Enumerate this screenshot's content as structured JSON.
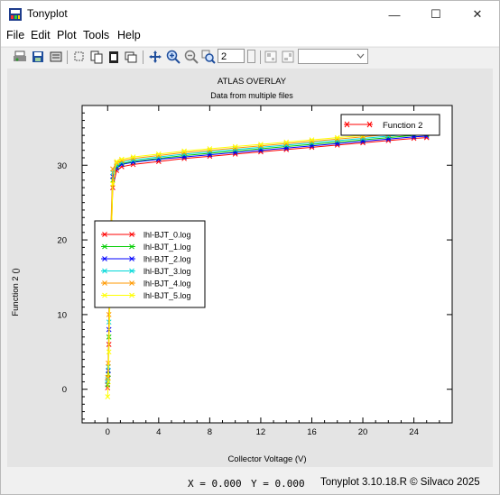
{
  "window": {
    "title": "Tonyplot",
    "minimize": "—",
    "maximize": "☐",
    "close": "✕"
  },
  "menu": [
    "File",
    "Edit",
    "Plot",
    "Tools",
    "Help"
  ],
  "toolbar": {
    "zoom_value": "2",
    "icons": [
      "print-icon",
      "save-icon",
      "print-preview-icon",
      "select-icon",
      "copy-icon",
      "clipboard-icon",
      "window-icon",
      "pan-icon",
      "zoom-in-icon",
      "zoom-out-icon",
      "zoom-box-icon",
      "layout-icon",
      "layout-alt-icon"
    ]
  },
  "status": {
    "x": "X = 0.000",
    "y": "Y = 0.000",
    "credit": "Tonyplot 3.10.18.R © Silvaco 2025"
  },
  "chart_data": {
    "type": "line",
    "title": "ATLAS OVERLAY",
    "subtitle": "Data from multiple files",
    "xlabel": "Collector Voltage (V)",
    "ylabel": "Function 2 ()",
    "xlim": [
      -2,
      27
    ],
    "ylim": [
      -4.5,
      38
    ],
    "xticks": [
      0,
      4,
      8,
      12,
      16,
      20,
      24
    ],
    "yticks": [
      0,
      10,
      20,
      30
    ],
    "grid": false,
    "legend_placement": "left",
    "legend_top_right": "Function 2",
    "series": [
      {
        "name": "lhl-BJT_0.log",
        "color": "#ff0000",
        "x": [
          0,
          0.05,
          0.1,
          0.2,
          0.4,
          0.7,
          1.1,
          2,
          4,
          6,
          8,
          10,
          12,
          14,
          16,
          18,
          20,
          22,
          24,
          25
        ],
        "y": [
          0.2,
          1.5,
          6,
          15,
          27,
          29.3,
          29.8,
          30.1,
          30.5,
          30.9,
          31.2,
          31.5,
          31.8,
          32.1,
          32.4,
          32.7,
          33,
          33.3,
          33.6,
          33.7
        ]
      },
      {
        "name": "lhl-BJT_1.log",
        "color": "#00cc00",
        "x": [
          0,
          0.05,
          0.1,
          0.2,
          0.4,
          0.7,
          1.1,
          2,
          4,
          6,
          8,
          10,
          12,
          14,
          16,
          18,
          20,
          22,
          24,
          25
        ],
        "y": [
          0.6,
          2,
          7,
          16,
          28,
          29.8,
          30.2,
          30.5,
          30.9,
          31.3,
          31.6,
          31.9,
          32.2,
          32.5,
          32.8,
          33.1,
          33.4,
          33.7,
          34,
          34.1
        ]
      },
      {
        "name": "lhl-BJT_2.log",
        "color": "#0000ff",
        "x": [
          0,
          0.05,
          0.1,
          0.2,
          0.4,
          0.7,
          1.1,
          2,
          4,
          6,
          8,
          10,
          12,
          14,
          16,
          18,
          20,
          22,
          24,
          25
        ],
        "y": [
          1,
          2.5,
          8,
          17,
          28.5,
          29.6,
          30.1,
          30.4,
          30.8,
          31.1,
          31.4,
          31.7,
          32,
          32.3,
          32.6,
          32.9,
          33.2,
          33.5,
          33.8,
          33.9
        ]
      },
      {
        "name": "lhl-BJT_3.log",
        "color": "#00d8d8",
        "x": [
          0,
          0.05,
          0.1,
          0.2,
          0.4,
          0.7,
          1.1,
          2,
          4,
          6,
          8,
          10,
          12,
          14,
          16,
          18,
          20,
          22,
          24,
          25
        ],
        "y": [
          1.3,
          3,
          9,
          18,
          29,
          30,
          30.4,
          30.7,
          31.1,
          31.5,
          31.8,
          32.1,
          32.4,
          32.7,
          33,
          33.3,
          33.6,
          33.9,
          34.2,
          34.3
        ]
      },
      {
        "name": "lhl-BJT_4.log",
        "color": "#ff9900",
        "x": [
          0,
          0.05,
          0.1,
          0.2,
          0.4,
          0.7,
          1.1,
          2,
          4,
          6,
          8,
          10,
          12,
          14,
          16,
          18,
          20,
          22,
          24,
          25
        ],
        "y": [
          1.6,
          3.5,
          10,
          19,
          29.5,
          30.3,
          30.6,
          30.9,
          31.3,
          31.7,
          32,
          32.3,
          32.6,
          32.9,
          33.2,
          33.5,
          33.8,
          34.1,
          34.4,
          34.5
        ]
      },
      {
        "name": "lhl-BJT_5.log",
        "color": "#ffff00",
        "x": [
          0,
          0.05,
          0.1,
          0.2,
          0.4,
          0.7,
          1.1,
          2,
          4,
          6,
          8,
          10,
          12,
          14,
          16,
          18,
          20,
          22,
          24,
          25
        ],
        "y": [
          -1,
          1,
          5,
          14,
          27.5,
          30.5,
          30.8,
          31.1,
          31.5,
          31.9,
          32.2,
          32.5,
          32.8,
          33.1,
          33.4,
          33.7,
          34,
          34.3,
          34.6,
          34.7
        ]
      }
    ]
  }
}
